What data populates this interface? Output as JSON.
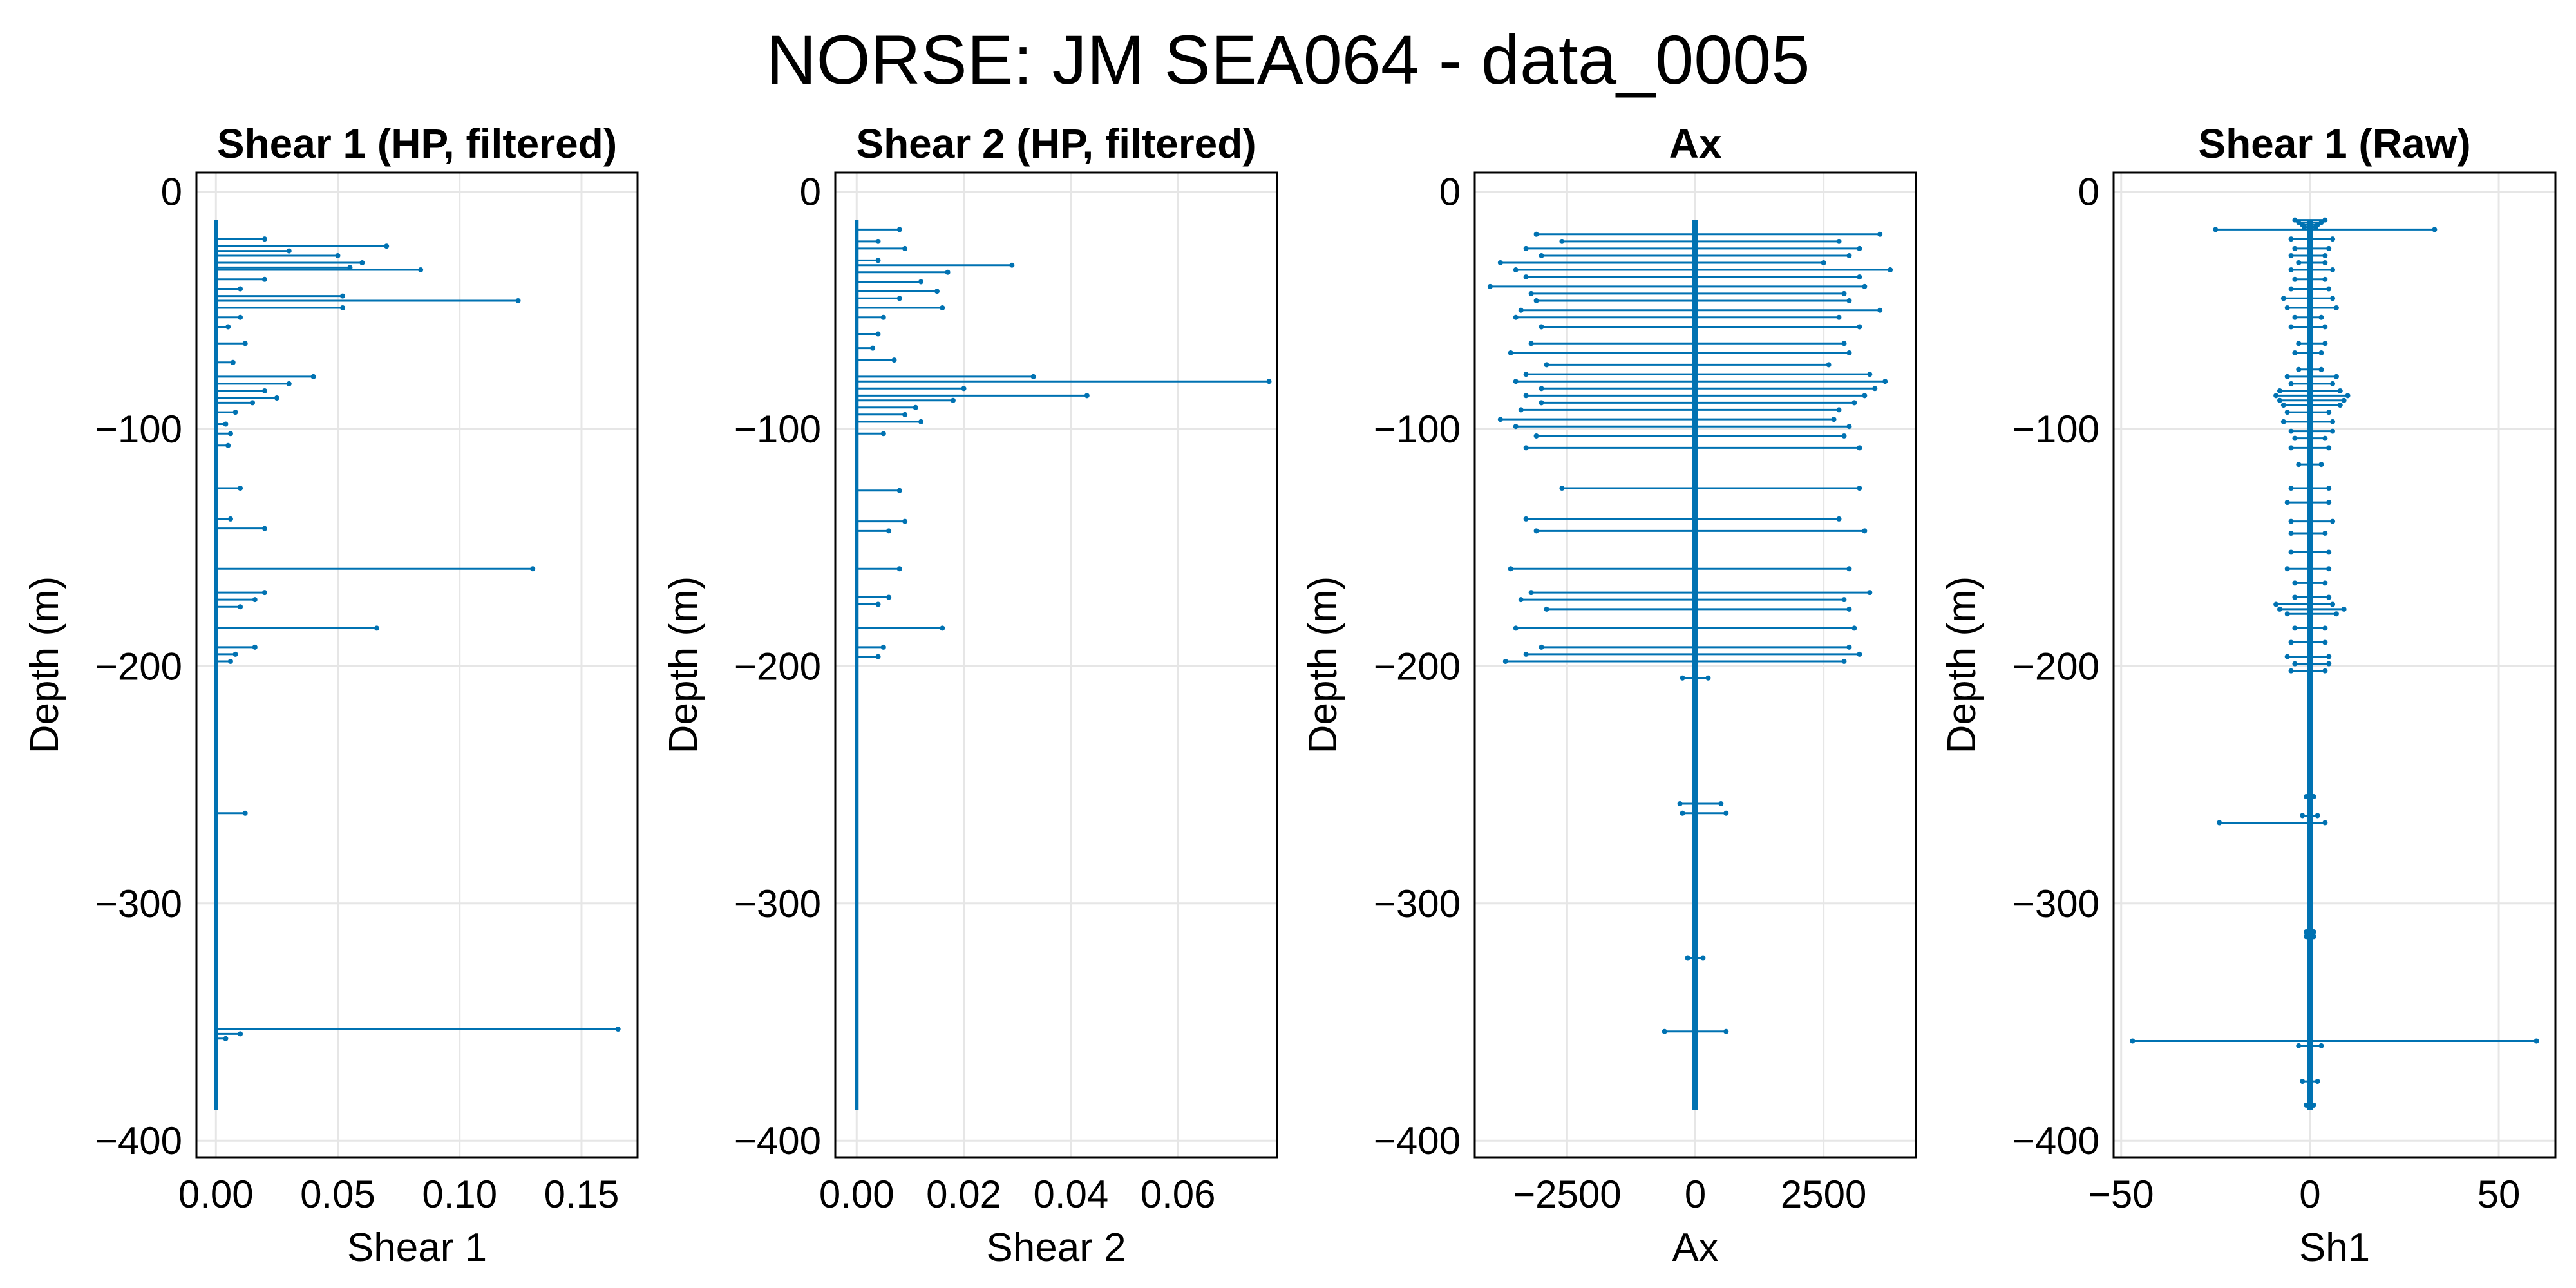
{
  "figure": {
    "title": "NORSE: JM SEA064 - data_0005",
    "line_color": "#0072b2"
  },
  "chart_data": [
    {
      "type": "line",
      "title": "Shear 1 (HP, filtered)",
      "xlabel": "Shear 1",
      "ylabel": "Depth (m)",
      "xlim": [
        -0.008,
        0.173
      ],
      "ylim": [
        -407,
        8
      ],
      "xticks": [
        0.0,
        0.05,
        0.1,
        0.15
      ],
      "xtick_labels": [
        "0.00",
        "0.05",
        "0.10",
        "0.15"
      ],
      "yticks": [
        0,
        -100,
        -200,
        -300,
        -400
      ],
      "ytick_labels": [
        "0",
        "−100",
        "−200",
        "−300",
        "−400"
      ],
      "grid": true,
      "profile_depth": [
        -12,
        -387
      ],
      "spikes": [
        {
          "depth": -20,
          "value": 0.02
        },
        {
          "depth": -23,
          "value": 0.07
        },
        {
          "depth": -25,
          "value": 0.03
        },
        {
          "depth": -27,
          "value": 0.05
        },
        {
          "depth": -30,
          "value": 0.06
        },
        {
          "depth": -32,
          "value": 0.055
        },
        {
          "depth": -33,
          "value": 0.084
        },
        {
          "depth": -37,
          "value": 0.02
        },
        {
          "depth": -41,
          "value": 0.01
        },
        {
          "depth": -44,
          "value": 0.052
        },
        {
          "depth": -46,
          "value": 0.124
        },
        {
          "depth": -49,
          "value": 0.052
        },
        {
          "depth": -53,
          "value": 0.01
        },
        {
          "depth": -57,
          "value": 0.005
        },
        {
          "depth": -64,
          "value": 0.012
        },
        {
          "depth": -72,
          "value": 0.007
        },
        {
          "depth": -78,
          "value": 0.04
        },
        {
          "depth": -81,
          "value": 0.03
        },
        {
          "depth": -84,
          "value": 0.02
        },
        {
          "depth": -87,
          "value": 0.025
        },
        {
          "depth": -89,
          "value": 0.015
        },
        {
          "depth": -93,
          "value": 0.008
        },
        {
          "depth": -98,
          "value": 0.004
        },
        {
          "depth": -102,
          "value": 0.006
        },
        {
          "depth": -107,
          "value": 0.005
        },
        {
          "depth": -125,
          "value": 0.01
        },
        {
          "depth": -138,
          "value": 0.006
        },
        {
          "depth": -142,
          "value": 0.02
        },
        {
          "depth": -159,
          "value": 0.13
        },
        {
          "depth": -169,
          "value": 0.02
        },
        {
          "depth": -172,
          "value": 0.016
        },
        {
          "depth": -175,
          "value": 0.01
        },
        {
          "depth": -184,
          "value": 0.066
        },
        {
          "depth": -192,
          "value": 0.016
        },
        {
          "depth": -195,
          "value": 0.008
        },
        {
          "depth": -198,
          "value": 0.006
        },
        {
          "depth": -262,
          "value": 0.012
        },
        {
          "depth": -353,
          "value": 0.165
        },
        {
          "depth": -355,
          "value": 0.01
        },
        {
          "depth": -357,
          "value": 0.004
        }
      ]
    },
    {
      "type": "line",
      "title": "Shear 2 (HP, filtered)",
      "xlabel": "Shear 2",
      "ylabel": "Depth (m)",
      "xlim": [
        -0.004,
        0.0785
      ],
      "ylim": [
        -407,
        8
      ],
      "xticks": [
        0.0,
        0.02,
        0.04,
        0.06
      ],
      "xtick_labels": [
        "0.00",
        "0.02",
        "0.04",
        "0.06"
      ],
      "yticks": [
        0,
        -100,
        -200,
        -300,
        -400
      ],
      "ytick_labels": [
        "0",
        "−100",
        "−200",
        "−300",
        "−400"
      ],
      "grid": true,
      "profile_depth": [
        -12,
        -387
      ],
      "spikes": [
        {
          "depth": -16,
          "value": 0.008
        },
        {
          "depth": -21,
          "value": 0.004
        },
        {
          "depth": -24,
          "value": 0.009
        },
        {
          "depth": -29,
          "value": 0.004
        },
        {
          "depth": -31,
          "value": 0.029
        },
        {
          "depth": -34,
          "value": 0.017
        },
        {
          "depth": -38,
          "value": 0.012
        },
        {
          "depth": -42,
          "value": 0.015
        },
        {
          "depth": -45,
          "value": 0.008
        },
        {
          "depth": -49,
          "value": 0.016
        },
        {
          "depth": -53,
          "value": 0.005
        },
        {
          "depth": -60,
          "value": 0.004
        },
        {
          "depth": -66,
          "value": 0.003
        },
        {
          "depth": -71,
          "value": 0.007
        },
        {
          "depth": -78,
          "value": 0.033
        },
        {
          "depth": -80,
          "value": 0.077
        },
        {
          "depth": -83,
          "value": 0.02
        },
        {
          "depth": -86,
          "value": 0.043
        },
        {
          "depth": -88,
          "value": 0.018
        },
        {
          "depth": -91,
          "value": 0.011
        },
        {
          "depth": -94,
          "value": 0.009
        },
        {
          "depth": -97,
          "value": 0.012
        },
        {
          "depth": -102,
          "value": 0.005
        },
        {
          "depth": -126,
          "value": 0.008
        },
        {
          "depth": -139,
          "value": 0.009
        },
        {
          "depth": -143,
          "value": 0.006
        },
        {
          "depth": -159,
          "value": 0.008
        },
        {
          "depth": -171,
          "value": 0.006
        },
        {
          "depth": -174,
          "value": 0.004
        },
        {
          "depth": -184,
          "value": 0.016
        },
        {
          "depth": -192,
          "value": 0.005
        },
        {
          "depth": -196,
          "value": 0.004
        }
      ]
    },
    {
      "type": "line",
      "title": "Ax",
      "xlabel": "Ax",
      "ylabel": "Depth (m)",
      "xlim": [
        -4300,
        4300
      ],
      "ylim": [
        -407,
        8
      ],
      "xticks": [
        -2500,
        0,
        2500
      ],
      "xtick_labels": [
        "−2500",
        "0",
        "2500"
      ],
      "yticks": [
        0,
        -100,
        -200,
        -300,
        -400
      ],
      "ytick_labels": [
        "0",
        "−100",
        "−200",
        "−300",
        "−400"
      ],
      "grid": true,
      "profile_depth": [
        -12,
        -387
      ],
      "spans": [
        {
          "depth": -18,
          "min": -3100,
          "max": 3600
        },
        {
          "depth": -21,
          "min": -2600,
          "max": 2800
        },
        {
          "depth": -24,
          "min": -3300,
          "max": 3200
        },
        {
          "depth": -27,
          "min": -3000,
          "max": 3000
        },
        {
          "depth": -30,
          "min": -3800,
          "max": 2500
        },
        {
          "depth": -33,
          "min": -3500,
          "max": 3800
        },
        {
          "depth": -36,
          "min": -3300,
          "max": 3200
        },
        {
          "depth": -40,
          "min": -4000,
          "max": 3300
        },
        {
          "depth": -43,
          "min": -3200,
          "max": 2900
        },
        {
          "depth": -46,
          "min": -3100,
          "max": 3000
        },
        {
          "depth": -50,
          "min": -3400,
          "max": 3600
        },
        {
          "depth": -53,
          "min": -3500,
          "max": 2800
        },
        {
          "depth": -57,
          "min": -3000,
          "max": 3200
        },
        {
          "depth": -64,
          "min": -3200,
          "max": 2900
        },
        {
          "depth": -68,
          "min": -3600,
          "max": 3000
        },
        {
          "depth": -73,
          "min": -2900,
          "max": 2600
        },
        {
          "depth": -77,
          "min": -3300,
          "max": 3400
        },
        {
          "depth": -80,
          "min": -3500,
          "max": 3700
        },
        {
          "depth": -83,
          "min": -3000,
          "max": 3500
        },
        {
          "depth": -86,
          "min": -3300,
          "max": 3300
        },
        {
          "depth": -89,
          "min": -3000,
          "max": 3100
        },
        {
          "depth": -92,
          "min": -3400,
          "max": 2800
        },
        {
          "depth": -96,
          "min": -3800,
          "max": 2700
        },
        {
          "depth": -99,
          "min": -3500,
          "max": 3000
        },
        {
          "depth": -103,
          "min": -3100,
          "max": 2900
        },
        {
          "depth": -108,
          "min": -3300,
          "max": 3200
        },
        {
          "depth": -125,
          "min": -2600,
          "max": 3200
        },
        {
          "depth": -138,
          "min": -3300,
          "max": 2800
        },
        {
          "depth": -143,
          "min": -3100,
          "max": 3300
        },
        {
          "depth": -159,
          "min": -3600,
          "max": 3000
        },
        {
          "depth": -169,
          "min": -3200,
          "max": 3400
        },
        {
          "depth": -172,
          "min": -3400,
          "max": 2900
        },
        {
          "depth": -176,
          "min": -2900,
          "max": 3000
        },
        {
          "depth": -184,
          "min": -3500,
          "max": 3100
        },
        {
          "depth": -192,
          "min": -3000,
          "max": 3000
        },
        {
          "depth": -195,
          "min": -3300,
          "max": 3200
        },
        {
          "depth": -198,
          "min": -3700,
          "max": 2900
        },
        {
          "depth": -205,
          "min": -250,
          "max": 250
        },
        {
          "depth": -258,
          "min": -300,
          "max": 500
        },
        {
          "depth": -262,
          "min": -250,
          "max": 600
        },
        {
          "depth": -323,
          "min": -150,
          "max": 150
        },
        {
          "depth": -354,
          "min": -600,
          "max": 600
        }
      ]
    },
    {
      "type": "line",
      "title": "Shear 1 (Raw)",
      "xlabel": "Sh1",
      "ylabel": "Depth (m)",
      "xlim": [
        -52,
        65
      ],
      "ylim": [
        -407,
        8
      ],
      "xticks": [
        -50,
        0,
        50
      ],
      "xtick_labels": [
        "−50",
        "0",
        "50"
      ],
      "yticks": [
        0,
        -100,
        -200,
        -300,
        -400
      ],
      "ytick_labels": [
        "0",
        "−100",
        "−200",
        "−300",
        "−400"
      ],
      "grid": true,
      "profile_depth": [
        -12,
        -387
      ],
      "spans": [
        {
          "depth": -12,
          "min": -4,
          "max": 4
        },
        {
          "depth": -13,
          "min": -3,
          "max": 3
        },
        {
          "depth": -14,
          "min": -2,
          "max": 2
        },
        {
          "depth": -15,
          "min": -1.5,
          "max": 1.5
        },
        {
          "depth": -16,
          "min": -25,
          "max": 33
        },
        {
          "depth": -20,
          "min": -5,
          "max": 6
        },
        {
          "depth": -24,
          "min": -4,
          "max": 5
        },
        {
          "depth": -27,
          "min": -5,
          "max": 4
        },
        {
          "depth": -30,
          "min": -3,
          "max": 4
        },
        {
          "depth": -33,
          "min": -5,
          "max": 6
        },
        {
          "depth": -37,
          "min": -4,
          "max": 4
        },
        {
          "depth": -41,
          "min": -5,
          "max": 5
        },
        {
          "depth": -45,
          "min": -7,
          "max": 6
        },
        {
          "depth": -49,
          "min": -6,
          "max": 7
        },
        {
          "depth": -53,
          "min": -4,
          "max": 3
        },
        {
          "depth": -57,
          "min": -5,
          "max": 4
        },
        {
          "depth": -64,
          "min": -3,
          "max": 4
        },
        {
          "depth": -68,
          "min": -4,
          "max": 3
        },
        {
          "depth": -75,
          "min": -3,
          "max": 3
        },
        {
          "depth": -78,
          "min": -6,
          "max": 7
        },
        {
          "depth": -81,
          "min": -5,
          "max": 6
        },
        {
          "depth": -84,
          "min": -8,
          "max": 8
        },
        {
          "depth": -86,
          "min": -9,
          "max": 10
        },
        {
          "depth": -88,
          "min": -8,
          "max": 9
        },
        {
          "depth": -90,
          "min": -7,
          "max": 8
        },
        {
          "depth": -93,
          "min": -6,
          "max": 5
        },
        {
          "depth": -97,
          "min": -7,
          "max": 6
        },
        {
          "depth": -101,
          "min": -5,
          "max": 6
        },
        {
          "depth": -104,
          "min": -4,
          "max": 4
        },
        {
          "depth": -108,
          "min": -5,
          "max": 5
        },
        {
          "depth": -115,
          "min": -3,
          "max": 3
        },
        {
          "depth": -125,
          "min": -5,
          "max": 5
        },
        {
          "depth": -131,
          "min": -6,
          "max": 5
        },
        {
          "depth": -139,
          "min": -5,
          "max": 6
        },
        {
          "depth": -144,
          "min": -5,
          "max": 4
        },
        {
          "depth": -152,
          "min": -5,
          "max": 5
        },
        {
          "depth": -159,
          "min": -6,
          "max": 5
        },
        {
          "depth": -165,
          "min": -4,
          "max": 4
        },
        {
          "depth": -171,
          "min": -4,
          "max": 5
        },
        {
          "depth": -174,
          "min": -9,
          "max": 6
        },
        {
          "depth": -176,
          "min": -8,
          "max": 9
        },
        {
          "depth": -178,
          "min": -6,
          "max": 7
        },
        {
          "depth": -184,
          "min": -4,
          "max": 4
        },
        {
          "depth": -190,
          "min": -5,
          "max": 4
        },
        {
          "depth": -196,
          "min": -6,
          "max": 5
        },
        {
          "depth": -199,
          "min": -4,
          "max": 5
        },
        {
          "depth": -202,
          "min": -5,
          "max": 4
        },
        {
          "depth": -255,
          "min": -1,
          "max": 1
        },
        {
          "depth": -263,
          "min": -2,
          "max": 2
        },
        {
          "depth": -266,
          "min": -24,
          "max": 4
        },
        {
          "depth": -312,
          "min": -1,
          "max": 1
        },
        {
          "depth": -314,
          "min": -1,
          "max": 1
        },
        {
          "depth": -358,
          "min": -47,
          "max": 60
        },
        {
          "depth": -360,
          "min": -3,
          "max": 3
        },
        {
          "depth": -375,
          "min": -2,
          "max": 2
        },
        {
          "depth": -385,
          "min": -1,
          "max": 1
        }
      ]
    }
  ]
}
